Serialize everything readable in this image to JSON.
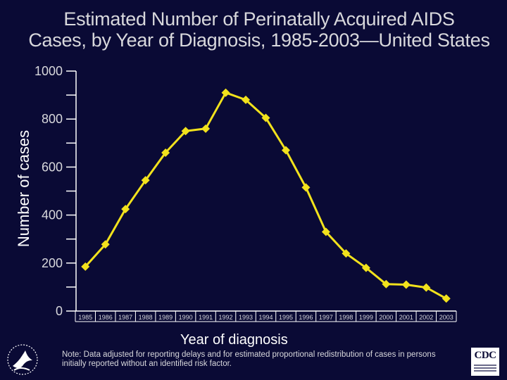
{
  "slide": {
    "title_line1": "Estimated Number of Perinatally Acquired AIDS",
    "title_line2": "Cases, by Year of  Diagnosis, 1985-2003—United States",
    "note_line1": "Note: Data adjusted for reporting delays and for estimated proportional redistribution of cases in persons",
    "note_line2": "initially reported without an identified risk factor.",
    "logo_text": "CDC",
    "hhs_emblem": "hhs-eagle-seal",
    "background_color": "#0a0a35"
  },
  "chart_data": {
    "type": "line",
    "title": "Estimated Number of Perinatally Acquired AIDS Cases, by Year of Diagnosis, 1985-2003—United States",
    "xlabel": "Year of diagnosis",
    "ylabel": "Number of cases",
    "categories": [
      "1985",
      "1986",
      "1987",
      "1988",
      "1989",
      "1990",
      "1991",
      "1992",
      "1993",
      "1994",
      "1995",
      "1996",
      "1997",
      "1998",
      "1999",
      "2000",
      "2001",
      "2002",
      "2003"
    ],
    "series": [
      {
        "name": "Perinatally acquired AIDS cases",
        "color": "#f2e21c",
        "values": [
          185,
          278,
          425,
          545,
          660,
          750,
          760,
          910,
          880,
          805,
          670,
          515,
          330,
          240,
          180,
          112,
          110,
          98,
          52
        ]
      }
    ],
    "ylim": [
      0,
      1000
    ],
    "yticks": [
      0,
      200,
      400,
      600,
      800,
      1000
    ],
    "grid": false,
    "legend": "none",
    "axis_color": "#ffffff",
    "tick_label_color": "#d8d8dc"
  }
}
